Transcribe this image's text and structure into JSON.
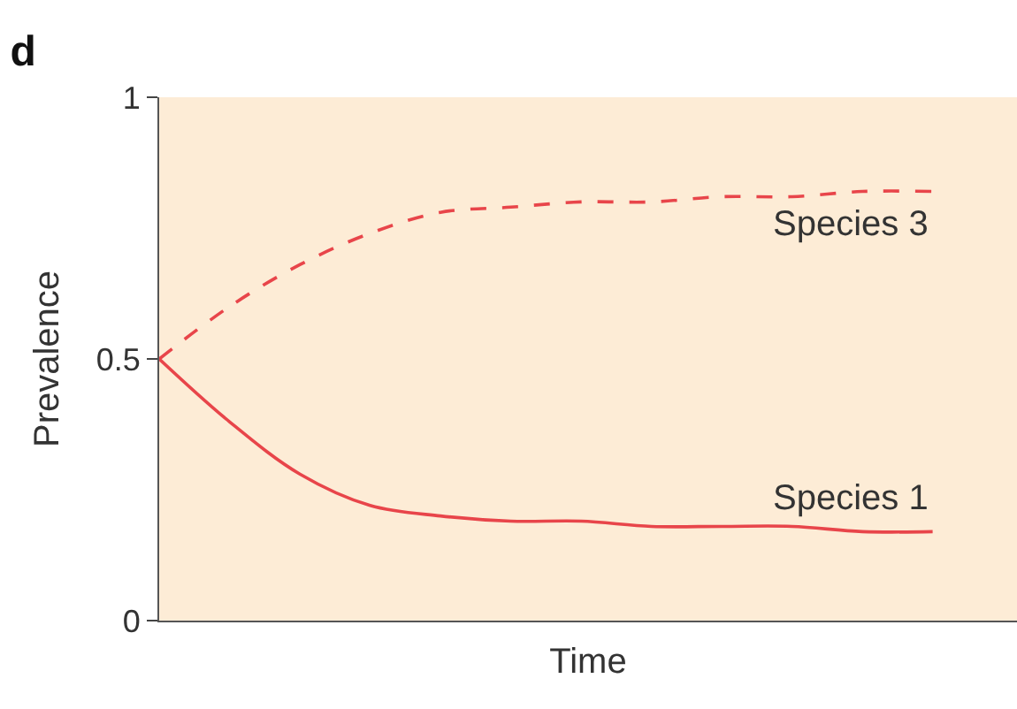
{
  "chart_data": {
    "type": "line",
    "title": "d",
    "xlabel": "Time",
    "ylabel": "Prevalence",
    "categories": [
      null,
      null,
      null,
      null,
      null,
      null,
      null,
      null,
      null,
      null,
      null,
      null
    ],
    "series": [
      {
        "name": "Species 3",
        "color": "#e8454a",
        "line_style": "dashed",
        "values": [
          0.5,
          0.6,
          0.68,
          0.74,
          0.78,
          0.79,
          0.8,
          0.8,
          0.81,
          0.81,
          0.82,
          0.82
        ]
      },
      {
        "name": "Species 1",
        "color": "#e8454a",
        "line_style": "solid",
        "values": [
          0.5,
          0.38,
          0.28,
          0.22,
          0.2,
          0.19,
          0.19,
          0.18,
          0.18,
          0.18,
          0.17,
          0.17
        ]
      }
    ],
    "ylim": [
      0,
      1
    ],
    "yticks": [
      0,
      0.5,
      1
    ],
    "grid": false,
    "legend": false,
    "marker": "none",
    "tick_labels": "y"
  }
}
